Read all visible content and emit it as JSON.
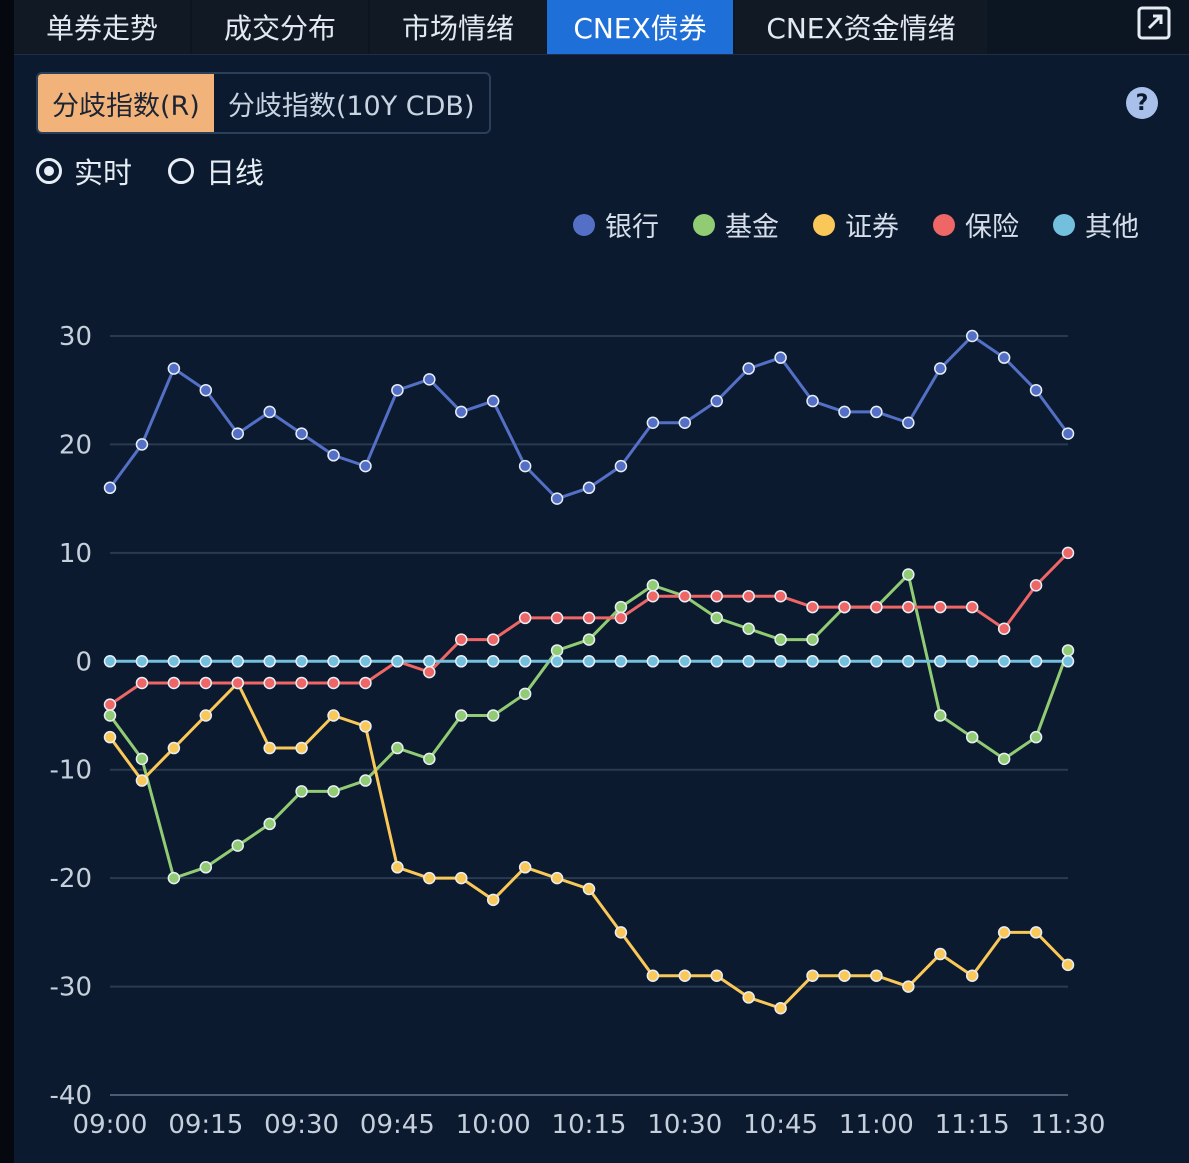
{
  "tabs": [
    {
      "label": "单券走势",
      "active": false
    },
    {
      "label": "成交分布",
      "active": false
    },
    {
      "label": "市场情绪",
      "active": false
    },
    {
      "label": "CNEX债券",
      "active": true
    },
    {
      "label": "CNEX资金情绪",
      "active": false
    }
  ],
  "segments": [
    {
      "label": "分歧指数(R)",
      "active": true
    },
    {
      "label": "分歧指数(10Y CDB)",
      "active": false
    }
  ],
  "help_label": "?",
  "radios": [
    {
      "label": "实时",
      "checked": true
    },
    {
      "label": "日线",
      "checked": false
    }
  ],
  "chart_data": {
    "type": "line",
    "x": [
      "09:00",
      "09:05",
      "09:10",
      "09:15",
      "09:20",
      "09:25",
      "09:30",
      "09:35",
      "09:40",
      "09:45",
      "09:50",
      "09:55",
      "10:00",
      "10:05",
      "10:10",
      "10:15",
      "10:20",
      "10:25",
      "10:30",
      "10:35",
      "10:40",
      "10:45",
      "10:50",
      "10:55",
      "11:00",
      "11:05",
      "11:10",
      "11:15",
      "11:20",
      "11:25",
      "11:30"
    ],
    "x_tick_labels": [
      "09:00",
      "09:15",
      "09:30",
      "09:45",
      "10:00",
      "10:15",
      "10:30",
      "10:45",
      "11:00",
      "11:15",
      "11:30"
    ],
    "y_ticks": [
      30,
      20,
      10,
      0,
      -10,
      -20,
      -30,
      -40
    ],
    "ylim": [
      -40,
      30
    ],
    "grid": true,
    "legend_position": "top-right",
    "series": [
      {
        "name": "银行",
        "color": "#5470c6",
        "values": [
          16,
          20,
          27,
          25,
          21,
          23,
          21,
          19,
          18,
          25,
          26,
          23,
          24,
          18,
          15,
          16,
          18,
          22,
          22,
          24,
          27,
          28,
          24,
          23,
          23,
          22,
          27,
          30,
          28,
          25,
          21
        ]
      },
      {
        "name": "基金",
        "color": "#91cc75",
        "values": [
          -5,
          -9,
          -20,
          -19,
          -17,
          -15,
          -12,
          -12,
          -11,
          -8,
          -9,
          -5,
          -5,
          -3,
          1,
          2,
          5,
          7,
          6,
          4,
          3,
          2,
          2,
          5,
          5,
          8,
          -5,
          -7,
          -9,
          -7,
          1
        ]
      },
      {
        "name": "证券",
        "color": "#fac858",
        "values": [
          -7,
          -11,
          -8,
          -5,
          -2,
          -8,
          -8,
          -5,
          -6,
          -19,
          -20,
          -20,
          -22,
          -19,
          -20,
          -21,
          -25,
          -29,
          -29,
          -29,
          -31,
          -32,
          -29,
          -29,
          -29,
          -30,
          -27,
          -29,
          -25,
          -25,
          -28
        ]
      },
      {
        "name": "保险",
        "color": "#ee6666",
        "values": [
          -4,
          -2,
          -2,
          -2,
          -2,
          -2,
          -2,
          -2,
          -2,
          0,
          -1,
          2,
          2,
          4,
          4,
          4,
          4,
          6,
          6,
          6,
          6,
          6,
          5,
          5,
          5,
          5,
          5,
          5,
          3,
          7,
          10
        ]
      },
      {
        "name": "其他",
        "color": "#73c0de",
        "values": [
          0,
          0,
          0,
          0,
          0,
          0,
          0,
          0,
          0,
          0,
          0,
          0,
          0,
          0,
          0,
          0,
          0,
          0,
          0,
          0,
          0,
          0,
          0,
          0,
          0,
          0,
          0,
          0,
          0,
          0,
          0
        ]
      }
    ]
  }
}
